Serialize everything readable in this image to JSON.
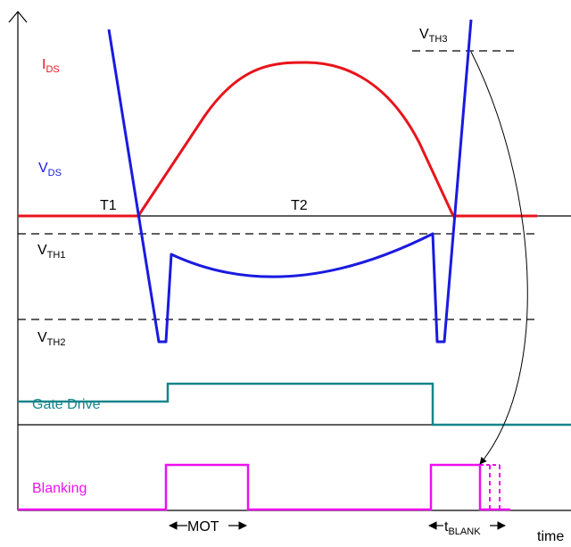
{
  "colors": {
    "ids": "#e8141c",
    "vds": "#1a1ae0",
    "gate": "#15858a",
    "blank": "#ee10ee",
    "axis": "#000000",
    "threshold": "#000000"
  },
  "labels": {
    "ids": {
      "main": "I",
      "sub": "DS"
    },
    "vds": {
      "main": "V",
      "sub": "DS"
    },
    "t1": "T1",
    "t2": "T2",
    "vth1": {
      "main": "V",
      "sub": "TH1"
    },
    "vth2": {
      "main": "V",
      "sub": "TH2"
    },
    "vth3": {
      "main": "V",
      "sub": "TH3"
    },
    "gate_drive": "Gate Drive",
    "blanking": "Blanking",
    "mot": "MOT",
    "tblank": {
      "main": "t",
      "sub": "BLANK"
    },
    "time": "time"
  }
}
